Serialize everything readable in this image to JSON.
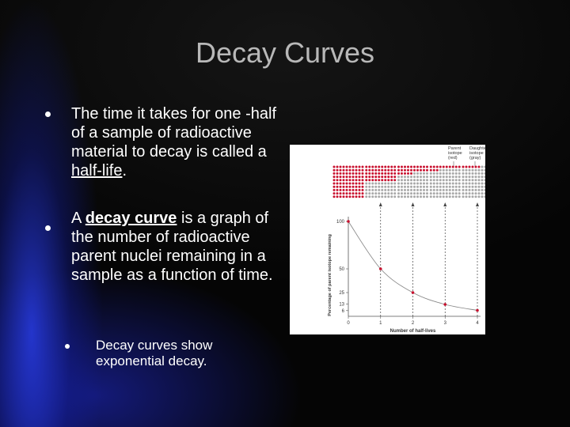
{
  "slide": {
    "title": "Decay Curves",
    "bullets": [
      {
        "parts": [
          "The time it takes for one -half of a sample of radioactive material to decay is called a ",
          "half-life",
          "."
        ]
      },
      {
        "parts": [
          "A ",
          "decay curve",
          " is a graph of the number of radioactive parent nuclei remaining in a sample as a function of time."
        ]
      }
    ],
    "sub_bullets": [
      "Decay curves show exponential decay."
    ]
  },
  "chart_data": {
    "type": "line",
    "x": [
      0,
      1,
      2,
      3,
      4
    ],
    "values": [
      100,
      50,
      25,
      12.5,
      6.25
    ],
    "xlim": [
      0,
      4
    ],
    "ylim": [
      0,
      100
    ],
    "xticks": [
      0,
      1,
      2,
      3,
      4
    ],
    "yticks": [
      100,
      50,
      25,
      13,
      6
    ],
    "x_label": "Number of half-lives",
    "y_label": "Percentage of parent isotope remaining",
    "color": "#c8102e",
    "legend": [
      {
        "label": "Parent isotope (red)",
        "color": "#c8102e"
      },
      {
        "label": "Daughter isotope (gray)",
        "color": "#a8a8a8"
      }
    ]
  }
}
